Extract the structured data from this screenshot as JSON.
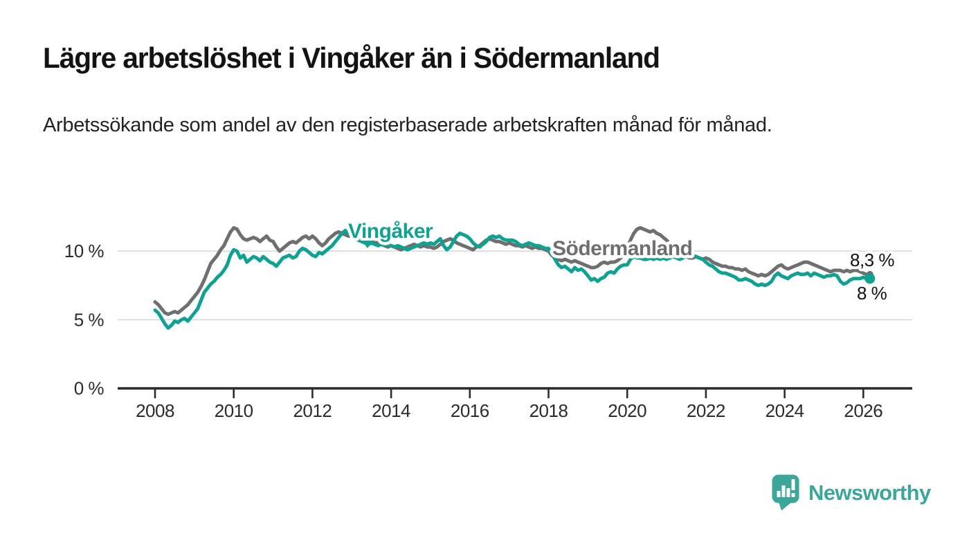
{
  "header": {
    "title": "Lägre arbetslöshet i Vingåker än i Södermanland",
    "subtitle": "Arbetssökande som andel av den registerbaserade arbetskraften månad för månad."
  },
  "chart_data": {
    "type": "line",
    "x_start_year": 2008,
    "x_resolution": "monthly",
    "x_tick_labels": [
      "2008",
      "2010",
      "2012",
      "2014",
      "2016",
      "2018",
      "2020",
      "2022",
      "2024",
      "2026"
    ],
    "x_tick_years": [
      2008,
      2010,
      2012,
      2014,
      2016,
      2018,
      2020,
      2022,
      2024,
      2026
    ],
    "y_tick_labels": [
      "0 %",
      "5 %",
      "10 %"
    ],
    "y_tick_values": [
      0,
      5,
      10
    ],
    "ylim": [
      0,
      12.6
    ],
    "grid": "horizontal",
    "legend_position": "inline-labels",
    "series": [
      {
        "name": "Södermanland",
        "color": "#6f6f6f",
        "end_label": "8,3 %",
        "end_value": 8.3,
        "values": [
          6.3,
          6.1,
          5.8,
          5.5,
          5.4,
          5.5,
          5.6,
          5.5,
          5.7,
          5.9,
          6.1,
          6.4,
          6.7,
          7.0,
          7.4,
          7.9,
          8.5,
          9.1,
          9.4,
          9.7,
          10.1,
          10.4,
          10.9,
          11.4,
          11.7,
          11.6,
          11.2,
          10.9,
          10.8,
          10.9,
          11.0,
          10.9,
          10.7,
          10.9,
          11.1,
          10.8,
          10.7,
          10.3,
          10.0,
          10.2,
          10.4,
          10.6,
          10.7,
          10.6,
          10.8,
          11.0,
          11.1,
          10.9,
          11.1,
          10.9,
          10.6,
          10.4,
          10.6,
          10.9,
          11.1,
          11.3,
          11.4,
          11.3,
          11.2,
          11.1,
          11.1,
          11.0,
          10.9,
          10.8,
          10.7,
          10.6,
          10.6,
          10.7,
          10.6,
          10.5,
          10.4,
          10.3,
          10.4,
          10.3,
          10.2,
          10.1,
          10.2,
          10.3,
          10.4,
          10.5,
          10.4,
          10.3,
          10.4,
          10.3,
          10.3,
          10.2,
          10.3,
          10.5,
          10.7,
          10.8,
          10.9,
          10.8,
          10.6,
          10.5,
          10.4,
          10.3,
          10.2,
          10.1,
          10.3,
          10.4,
          10.6,
          10.8,
          10.9,
          10.8,
          10.7,
          10.7,
          10.6,
          10.5,
          10.6,
          10.5,
          10.4,
          10.4,
          10.3,
          10.4,
          10.3,
          10.2,
          10.3,
          10.2,
          10.2,
          10.1,
          10.0,
          9.7,
          9.5,
          9.4,
          9.3,
          9.4,
          9.3,
          9.2,
          9.3,
          9.2,
          9.1,
          9.0,
          8.9,
          8.8,
          8.8,
          8.9,
          9.1,
          9.2,
          9.1,
          9.2,
          9.2,
          9.3,
          9.5,
          9.8,
          10.2,
          10.8,
          11.3,
          11.6,
          11.7,
          11.6,
          11.5,
          11.4,
          11.5,
          11.3,
          11.2,
          11.0,
          10.8,
          10.5,
          10.2,
          10.0,
          9.8,
          9.7,
          9.6,
          9.5,
          9.5,
          9.6,
          9.5,
          9.4,
          9.5,
          9.4,
          9.2,
          9.1,
          9.0,
          8.9,
          8.9,
          8.8,
          8.8,
          8.7,
          8.7,
          8.6,
          8.7,
          8.5,
          8.4,
          8.3,
          8.2,
          8.3,
          8.2,
          8.3,
          8.5,
          8.7,
          8.9,
          9.0,
          8.8,
          8.7,
          8.8,
          8.9,
          9.0,
          9.1,
          9.2,
          9.2,
          9.1,
          9.0,
          8.9,
          8.8,
          8.7,
          8.6,
          8.5,
          8.6,
          8.6,
          8.6,
          8.5,
          8.6,
          8.5,
          8.6,
          8.6,
          8.5,
          8.4,
          8.3,
          8.3
        ]
      },
      {
        "name": "Vingåker",
        "color": "#0fa292",
        "end_label": "8 %",
        "end_value": 8.0,
        "values": [
          5.7,
          5.5,
          5.1,
          4.7,
          4.4,
          4.6,
          4.9,
          4.8,
          5.0,
          5.1,
          4.9,
          5.2,
          5.5,
          5.8,
          6.4,
          7.0,
          7.3,
          7.6,
          7.8,
          8.1,
          8.3,
          8.6,
          9.0,
          9.7,
          10.1,
          10.0,
          9.5,
          9.7,
          9.2,
          9.4,
          9.6,
          9.5,
          9.3,
          9.6,
          9.4,
          9.2,
          9.1,
          8.9,
          9.2,
          9.5,
          9.6,
          9.7,
          9.5,
          9.6,
          10.0,
          10.2,
          10.1,
          9.9,
          9.7,
          9.6,
          9.9,
          9.8,
          10.0,
          10.2,
          10.4,
          10.7,
          11.0,
          11.3,
          11.5,
          11.3,
          11.1,
          10.9,
          10.8,
          10.7,
          10.6,
          10.5,
          10.6,
          10.5,
          10.4,
          10.5,
          10.4,
          10.5,
          10.4,
          10.3,
          10.4,
          10.3,
          10.2,
          10.1,
          10.2,
          10.3,
          10.4,
          10.5,
          10.6,
          10.5,
          10.6,
          10.5,
          10.7,
          10.9,
          10.4,
          10.1,
          10.3,
          10.7,
          11.1,
          11.3,
          11.2,
          11.1,
          10.9,
          10.6,
          10.4,
          10.3,
          10.5,
          10.7,
          11.0,
          11.1,
          11.0,
          11.1,
          10.9,
          10.8,
          10.8,
          10.8,
          10.7,
          10.5,
          10.4,
          10.5,
          10.6,
          10.5,
          10.4,
          10.4,
          10.3,
          10.2,
          10.2,
          9.8,
          9.4,
          9.0,
          8.8,
          8.9,
          8.7,
          8.5,
          8.8,
          8.6,
          8.7,
          8.5,
          8.2,
          7.9,
          8.0,
          7.8,
          8.0,
          8.1,
          8.4,
          8.5,
          8.4,
          8.7,
          8.9,
          9.0,
          9.0,
          9.4,
          9.6,
          9.5,
          9.5,
          9.4,
          9.4,
          9.5,
          9.4,
          9.5,
          9.4,
          9.5,
          9.4,
          9.5,
          9.6,
          9.5,
          9.4,
          9.5,
          9.6,
          9.8,
          9.7,
          9.6,
          9.5,
          9.4,
          9.2,
          9.0,
          8.9,
          8.7,
          8.5,
          8.4,
          8.4,
          8.3,
          8.2,
          8.1,
          7.9,
          7.9,
          8.0,
          7.9,
          7.8,
          7.6,
          7.5,
          7.6,
          7.5,
          7.6,
          7.8,
          8.2,
          8.4,
          8.2,
          8.1,
          8.0,
          8.2,
          8.3,
          8.4,
          8.3,
          8.3,
          8.4,
          8.2,
          8.4,
          8.3,
          8.2,
          8.1,
          8.2,
          8.2,
          8.3,
          8.2,
          7.8,
          7.6,
          7.7,
          7.9,
          8.0,
          8.0,
          8.0,
          8.1,
          8.0,
          8.0
        ]
      }
    ]
  },
  "footer": {
    "logo_text": "Newsworthy"
  },
  "colors": {
    "accent_teal": "#0fa292",
    "line_gray": "#6f6f6f",
    "grid": "#d9d9d9",
    "axis": "#2d2d2d",
    "title_text": "#131313",
    "logo_teal": "#3da69a"
  }
}
